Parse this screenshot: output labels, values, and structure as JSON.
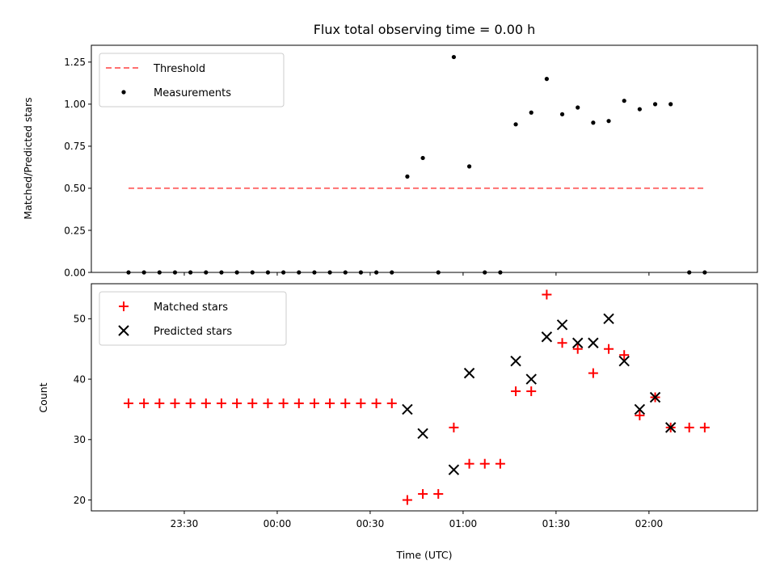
{
  "chart_data": [
    {
      "type": "scatter",
      "title": "Flux total observing time = 0.00 h",
      "ylabel": "Matched/Predicted stars",
      "xlabel": "",
      "ylim": [
        0,
        1.35
      ],
      "yticks": [
        "0.00",
        "0.25",
        "0.50",
        "0.75",
        "1.00",
        "1.25"
      ],
      "grid": false,
      "legend_position": "upper-left",
      "threshold": {
        "name": "Threshold",
        "color": "#ff7070",
        "style": "dashed",
        "y": 0.5,
        "x_range": [
          "23:12",
          "02:18"
        ]
      },
      "series": [
        {
          "name": "Measurements",
          "color": "#000000",
          "marker": "dot",
          "points": [
            [
              "23:12",
              0
            ],
            [
              "23:17",
              0
            ],
            [
              "23:22",
              0
            ],
            [
              "23:27",
              0
            ],
            [
              "23:32",
              0
            ],
            [
              "23:37",
              0
            ],
            [
              "23:42",
              0
            ],
            [
              "23:47",
              0
            ],
            [
              "23:52",
              0
            ],
            [
              "23:57",
              0
            ],
            [
              "00:02",
              0
            ],
            [
              "00:07",
              0
            ],
            [
              "00:12",
              0
            ],
            [
              "00:17",
              0
            ],
            [
              "00:22",
              0
            ],
            [
              "00:27",
              0
            ],
            [
              "00:32",
              0
            ],
            [
              "00:37",
              0
            ],
            [
              "00:42",
              0.57
            ],
            [
              "00:47",
              0.68
            ],
            [
              "00:52",
              0
            ],
            [
              "00:57",
              1.28
            ],
            [
              "01:02",
              0.63
            ],
            [
              "01:07",
              0
            ],
            [
              "01:12",
              0
            ],
            [
              "01:17",
              0.88
            ],
            [
              "01:22",
              0.95
            ],
            [
              "01:27",
              1.15
            ],
            [
              "01:32",
              0.94
            ],
            [
              "01:37",
              0.98
            ],
            [
              "01:42",
              0.89
            ],
            [
              "01:47",
              0.9
            ],
            [
              "01:52",
              1.02
            ],
            [
              "01:57",
              0.97
            ],
            [
              "02:02",
              1.0
            ],
            [
              "02:07",
              1.0
            ],
            [
              "02:13",
              0
            ],
            [
              "02:18",
              0
            ]
          ]
        }
      ]
    },
    {
      "type": "scatter",
      "title": "",
      "ylabel": "Count",
      "xlabel": "Time (UTC)",
      "ylim": [
        18.2,
        55.8
      ],
      "yticks": [
        "20",
        "30",
        "40",
        "50"
      ],
      "xticks": [
        "23:30",
        "00:00",
        "00:30",
        "01:00",
        "01:30",
        "02:00"
      ],
      "grid": false,
      "legend_position": "upper-left",
      "series": [
        {
          "name": "Matched stars",
          "color": "#ff0000",
          "marker": "plus",
          "points": [
            [
              "23:12",
              36
            ],
            [
              "23:17",
              36
            ],
            [
              "23:22",
              36
            ],
            [
              "23:27",
              36
            ],
            [
              "23:32",
              36
            ],
            [
              "23:37",
              36
            ],
            [
              "23:42",
              36
            ],
            [
              "23:47",
              36
            ],
            [
              "23:52",
              36
            ],
            [
              "23:57",
              36
            ],
            [
              "00:02",
              36
            ],
            [
              "00:07",
              36
            ],
            [
              "00:12",
              36
            ],
            [
              "00:17",
              36
            ],
            [
              "00:22",
              36
            ],
            [
              "00:27",
              36
            ],
            [
              "00:32",
              36
            ],
            [
              "00:37",
              36
            ],
            [
              "00:42",
              20
            ],
            [
              "00:47",
              21
            ],
            [
              "00:52",
              21
            ],
            [
              "00:57",
              32
            ],
            [
              "01:02",
              26
            ],
            [
              "01:07",
              26
            ],
            [
              "01:12",
              26
            ],
            [
              "01:17",
              38
            ],
            [
              "01:22",
              38
            ],
            [
              "01:27",
              54
            ],
            [
              "01:32",
              46
            ],
            [
              "01:37",
              45
            ],
            [
              "01:42",
              41
            ],
            [
              "01:47",
              45
            ],
            [
              "01:52",
              44
            ],
            [
              "01:57",
              34
            ],
            [
              "02:02",
              37
            ],
            [
              "02:07",
              32
            ],
            [
              "02:13",
              32
            ],
            [
              "02:18",
              32
            ]
          ]
        },
        {
          "name": "Predicted stars",
          "color": "#000000",
          "marker": "x",
          "points": [
            [
              "00:42",
              35
            ],
            [
              "00:47",
              31
            ],
            [
              "00:57",
              25
            ],
            [
              "01:02",
              41
            ],
            [
              "01:17",
              43
            ],
            [
              "01:22",
              40
            ],
            [
              "01:27",
              47
            ],
            [
              "01:32",
              49
            ],
            [
              "01:37",
              46
            ],
            [
              "01:42",
              46
            ],
            [
              "01:47",
              50
            ],
            [
              "01:52",
              43
            ],
            [
              "01:57",
              35
            ],
            [
              "02:02",
              37
            ],
            [
              "02:07",
              32
            ]
          ]
        }
      ]
    }
  ]
}
